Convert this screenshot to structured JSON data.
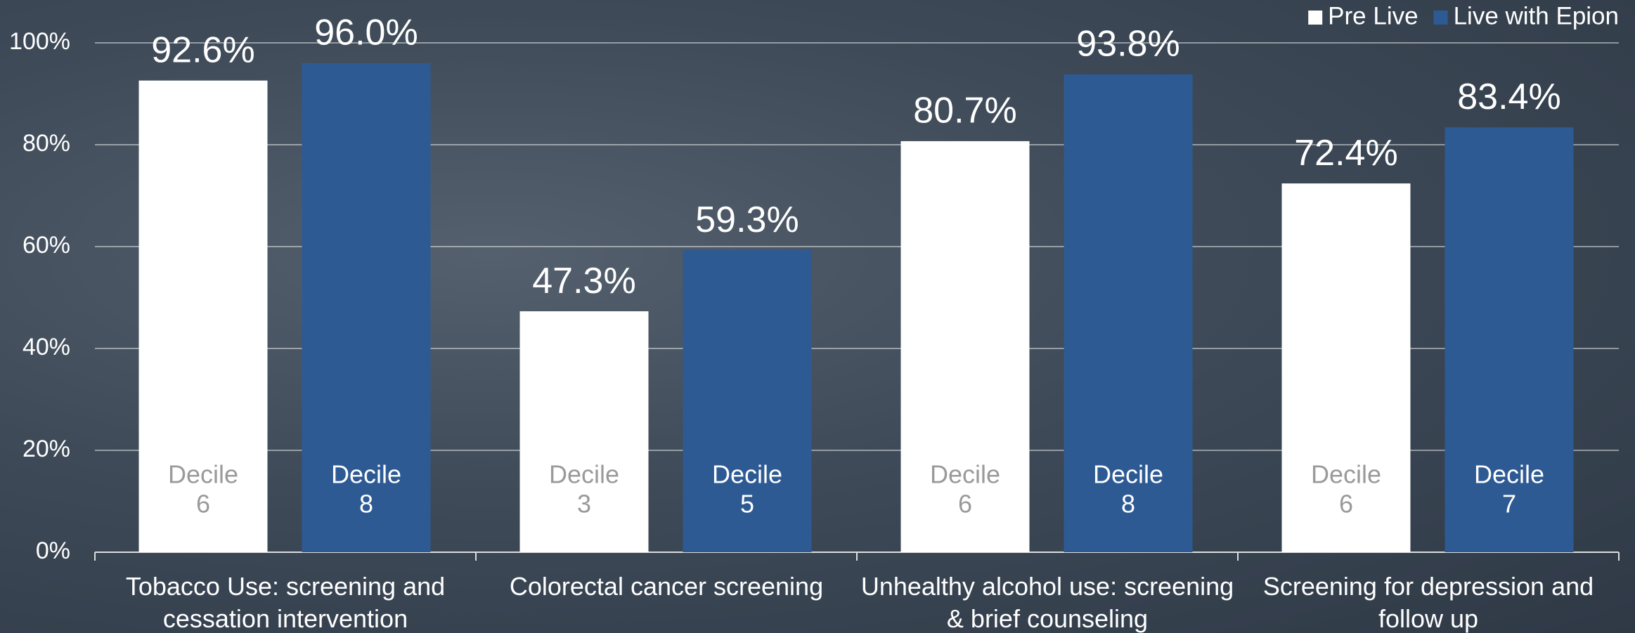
{
  "chart_data": {
    "type": "bar",
    "categories": [
      "Tobacco Use: screening and cessation intervention",
      "Colorectal cancer screening",
      "Unhealthy alcohol use: screening & brief counseling",
      "Screening for depression and follow up"
    ],
    "series": [
      {
        "name": "Pre Live",
        "color": "#ffffff",
        "values": [
          92.6,
          47.3,
          80.7,
          72.4
        ],
        "value_labels": [
          "92.6%",
          "47.3%",
          "80.7%",
          "72.4%"
        ],
        "bar_labels": [
          [
            "Decile",
            "6"
          ],
          [
            "Decile",
            "3"
          ],
          [
            "Decile",
            "6"
          ],
          [
            "Decile",
            "6"
          ]
        ],
        "bar_label_color": "#9a9a9a"
      },
      {
        "name": "Live with Epion",
        "color": "#2e5a94",
        "values": [
          96.0,
          59.3,
          93.8,
          83.4
        ],
        "value_labels": [
          "96.0%",
          "59.3%",
          "93.8%",
          "83.4%"
        ],
        "bar_labels": [
          [
            "Decile",
            "8"
          ],
          [
            "Decile",
            "5"
          ],
          [
            "Decile",
            "8"
          ],
          [
            "Decile",
            "7"
          ]
        ],
        "bar_label_color": "#ffffff"
      }
    ],
    "ylim": [
      0,
      100
    ],
    "yticks": [
      {
        "value": 0,
        "label": "0%"
      },
      {
        "value": 20,
        "label": "20%"
      },
      {
        "value": 40,
        "label": "40%"
      },
      {
        "value": 60,
        "label": "60%"
      },
      {
        "value": 80,
        "label": "80%"
      },
      {
        "value": 100,
        "label": "100%"
      }
    ],
    "grid": true,
    "legend": "top-right"
  }
}
